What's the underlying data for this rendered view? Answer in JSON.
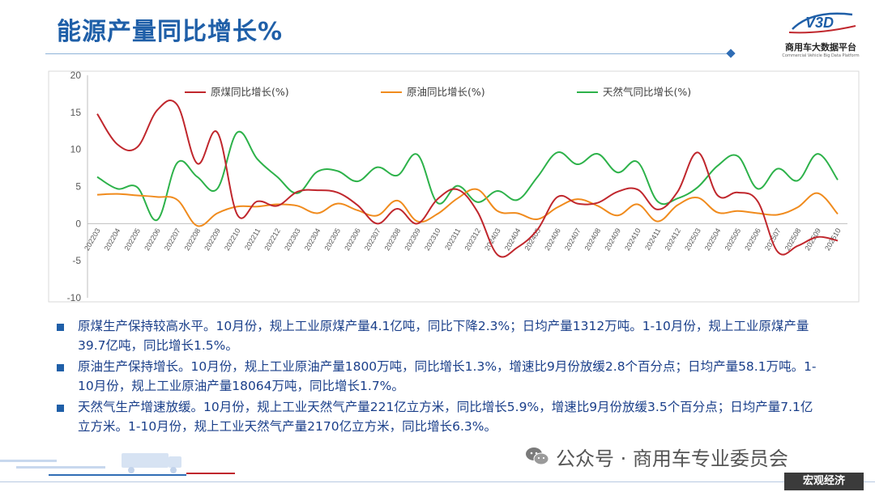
{
  "page": {
    "title": "能源产量同比增长%",
    "logo": {
      "name_cn": "商用车大数据平台",
      "name_en": "Commercial Vehicle Big Data Platform",
      "mark": "V3D"
    },
    "bullets": [
      "原煤生产保持较高水平。10月份，规上工业原煤产量4.1亿吨，同比下降2.3%；日均产量1312万吨。1-10月份，规上工业原煤产量39.7亿吨，同比增长1.5%。",
      "原油生产保持增长。10月份，规上工业原油产量1800万吨，同比增长1.3%，增速比9月份放缓2.8个百分点；日均产量58.1万吨。1-10月份，规上工业原油产量18064万吨，同比增长1.7%。",
      "天然气生产增速放缓。10月份，规上工业天然气产量221亿立方米，同比增长5.9%，增速比9月份放缓3.5个百分点；日均产量7.1亿立方米。1-10月份，规上工业天然气产量2170亿立方米，同比增长6.3%。"
    ],
    "wechat_label": "公众号 · 商用车专业委员会",
    "tag": "宏观经济",
    "colors": {
      "title": "#1f5fa8",
      "coal": "#c0272d",
      "oil": "#f08b1d",
      "gas": "#2db24a",
      "bullet": "#1a3f8a"
    }
  },
  "chart_data": {
    "type": "line",
    "title": "",
    "xlabel": "",
    "ylabel": "",
    "ylim": [
      -10,
      20
    ],
    "yticks": [
      -10,
      -5,
      0,
      5,
      10,
      15,
      20
    ],
    "legend_position": "top",
    "grid": false,
    "categories": [
      "202203",
      "202204",
      "202205",
      "202206",
      "202207",
      "202208",
      "202209",
      "202210",
      "202211",
      "202212",
      "202303",
      "202304",
      "202305",
      "202306",
      "202307",
      "202308",
      "202309",
      "202310",
      "202311",
      "202312",
      "202403",
      "202404",
      "202405",
      "202406",
      "202407",
      "202408",
      "202409",
      "202410",
      "202411",
      "202412",
      "202503",
      "202504",
      "202505",
      "202506",
      "202507",
      "202508",
      "202509",
      "202510"
    ],
    "series": [
      {
        "name": "原煤同比增长(%)",
        "color": "#c0272d",
        "values": [
          14.8,
          10.7,
          10.3,
          15.3,
          16.0,
          8.1,
          12.3,
          1.2,
          3.0,
          2.4,
          4.3,
          4.5,
          4.2,
          2.5,
          0.0,
          2.0,
          0.0,
          3.3,
          4.6,
          1.6,
          -4.2,
          -3.2,
          -0.8,
          3.6,
          2.7,
          2.8,
          4.3,
          4.6,
          1.9,
          4.3,
          9.6,
          3.8,
          4.2,
          3.0,
          -3.8,
          -3.0,
          -1.8,
          -2.3
        ]
      },
      {
        "name": "原油同比增长(%)",
        "color": "#f08b1d",
        "values": [
          3.9,
          4.0,
          3.8,
          3.6,
          3.2,
          -0.3,
          1.4,
          2.3,
          2.3,
          2.6,
          2.4,
          1.4,
          2.7,
          1.8,
          1.1,
          3.1,
          0.3,
          1.3,
          3.4,
          4.6,
          1.7,
          1.4,
          0.6,
          2.2,
          3.3,
          2.4,
          1.1,
          2.6,
          0.3,
          2.5,
          3.5,
          1.5,
          1.7,
          1.4,
          1.2,
          2.2,
          4.1,
          1.3
        ]
      },
      {
        "name": "天然气同比增长(%)",
        "color": "#2db24a",
        "values": [
          6.3,
          4.7,
          4.9,
          0.5,
          8.2,
          6.3,
          4.7,
          12.3,
          8.7,
          6.3,
          4.1,
          7.0,
          7.1,
          5.7,
          7.6,
          6.5,
          9.3,
          2.8,
          5.1,
          2.9,
          4.4,
          3.2,
          6.3,
          9.6,
          8.0,
          9.4,
          6.9,
          8.3,
          3.0,
          3.4,
          4.9,
          7.8,
          9.1,
          4.7,
          7.4,
          5.8,
          9.4,
          5.9
        ]
      }
    ]
  }
}
